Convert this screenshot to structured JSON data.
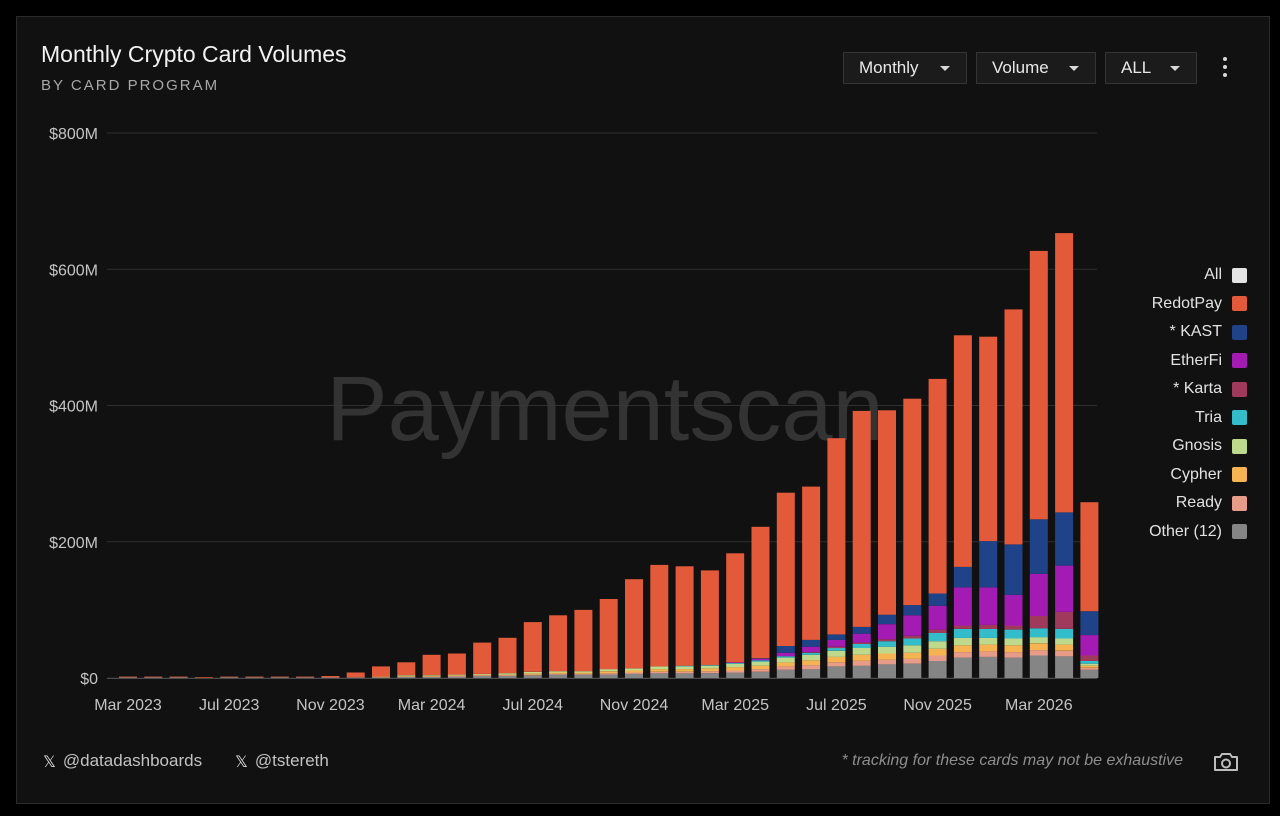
{
  "header": {
    "title": "Monthly Crypto Card Volumes",
    "subtitle": "BY CARD PROGRAM"
  },
  "controls": {
    "period": "Monthly",
    "metric": "Volume",
    "filter": "ALL",
    "menu_icon": "vertical-ellipsis-icon"
  },
  "watermark": "Paymentscan",
  "legend": [
    {
      "label": "All",
      "color": "#e3e3e3"
    },
    {
      "label": "RedotPay",
      "color": "#e25a39"
    },
    {
      "label": "* KAST",
      "color": "#1f4288"
    },
    {
      "label": "EtherFi",
      "color": "#a31bb3"
    },
    {
      "label": "* Karta",
      "color": "#a03a5c"
    },
    {
      "label": "Tria",
      "color": "#33bcc9"
    },
    {
      "label": "Gnosis",
      "color": "#bfd98c"
    },
    {
      "label": "Cypher",
      "color": "#f5b352"
    },
    {
      "label": "Ready",
      "color": "#e79c8a"
    },
    {
      "label": "Other (12)",
      "color": "#858585"
    }
  ],
  "footer": {
    "handles": [
      "@datadashboards",
      "@tstereth"
    ],
    "handle_icon": "x-logo-icon",
    "note": "* tracking for these cards may not be exhaustive",
    "camera_icon": "camera-icon"
  },
  "chart_data": {
    "type": "bar",
    "stacked": true,
    "unit": "$M",
    "ylim": [
      0,
      800
    ],
    "y_ticks": [
      0,
      200,
      400,
      600,
      800
    ],
    "y_tick_labels": [
      "$0",
      "$200M",
      "$400M",
      "$600M",
      "$800M"
    ],
    "x_tick_labels": [
      "Mar 2023",
      "Jul 2023",
      "Nov 2023",
      "Mar 2024",
      "Jul 2024",
      "Nov 2024",
      "Mar 2025",
      "Jul 2025",
      "Nov 2025",
      "Mar 2026"
    ],
    "categories": [
      "Mar 2023",
      "Apr 2023",
      "May 2023",
      "Jun 2023",
      "Jul 2023",
      "Aug 2023",
      "Sep 2023",
      "Oct 2023",
      "Nov 2023",
      "Dec 2023",
      "Jan 2024",
      "Feb 2024",
      "Mar 2024",
      "Apr 2024",
      "May 2024",
      "Jun 2024",
      "Jul 2024",
      "Aug 2024",
      "Sep 2024",
      "Oct 2024",
      "Nov 2024",
      "Dec 2024",
      "Jan 2025",
      "Feb 2025",
      "Mar 2025",
      "Apr 2025",
      "May 2025",
      "Jun 2025",
      "Jul 2025",
      "Aug 2025",
      "Sep 2025",
      "Oct 2025",
      "Nov 2025",
      "Dec 2025",
      "Jan 2026",
      "Feb 2026",
      "Mar 2026",
      "Apr 2026",
      "May 2026"
    ],
    "series": [
      {
        "name": "Other (12)",
        "values": [
          1,
          1,
          1,
          0,
          1,
          1,
          1,
          1,
          1,
          1,
          1,
          2,
          2,
          2,
          3,
          3,
          4,
          5,
          5,
          5,
          6,
          7,
          7,
          7,
          8,
          9,
          12,
          13,
          17,
          18,
          20,
          21,
          25,
          30,
          31,
          30,
          33,
          32,
          12
        ]
      },
      {
        "name": "Ready",
        "values": [
          0,
          0,
          0,
          0,
          0,
          0,
          0,
          0,
          0,
          0,
          0,
          0,
          0,
          1,
          1,
          1,
          1,
          1,
          1,
          2,
          2,
          2,
          2,
          3,
          3,
          4,
          5,
          6,
          6,
          7,
          7,
          7,
          8,
          8,
          8,
          8,
          8,
          8,
          3
        ]
      },
      {
        "name": "Cypher",
        "values": [
          0,
          0,
          0,
          0,
          0,
          0,
          0,
          0,
          0,
          0,
          1,
          1,
          1,
          1,
          1,
          1,
          2,
          2,
          2,
          3,
          3,
          4,
          4,
          4,
          5,
          5,
          6,
          7,
          8,
          9,
          9,
          9,
          10,
          10,
          10,
          10,
          10,
          9,
          3
        ]
      },
      {
        "name": "Gnosis",
        "values": [
          0,
          0,
          0,
          0,
          0,
          0,
          0,
          0,
          0,
          0,
          0,
          1,
          1,
          1,
          1,
          2,
          2,
          2,
          2,
          3,
          3,
          4,
          4,
          4,
          5,
          6,
          7,
          8,
          9,
          10,
          10,
          11,
          11,
          11,
          10,
          10,
          9,
          9,
          3
        ]
      },
      {
        "name": "Tria",
        "values": [
          0,
          0,
          0,
          0,
          0,
          0,
          0,
          0,
          0,
          0,
          0,
          0,
          0,
          0,
          0,
          0,
          0,
          0,
          0,
          0,
          0,
          0,
          1,
          1,
          1,
          2,
          2,
          3,
          4,
          6,
          8,
          10,
          12,
          13,
          13,
          13,
          13,
          14,
          4
        ]
      },
      {
        "name": "* Karta",
        "values": [
          0,
          0,
          0,
          0,
          0,
          0,
          0,
          0,
          0,
          0,
          0,
          0,
          0,
          0,
          0,
          0,
          0,
          0,
          0,
          0,
          0,
          0,
          0,
          0,
          0,
          0,
          0,
          1,
          2,
          2,
          3,
          4,
          5,
          5,
          6,
          6,
          18,
          25,
          8
        ]
      },
      {
        "name": "EtherFi",
        "values": [
          0,
          0,
          0,
          0,
          0,
          0,
          0,
          0,
          0,
          0,
          0,
          0,
          0,
          0,
          0,
          0,
          0,
          0,
          0,
          0,
          0,
          0,
          0,
          0,
          1,
          2,
          5,
          8,
          10,
          13,
          22,
          30,
          35,
          56,
          55,
          45,
          62,
          68,
          30
        ]
      },
      {
        "name": "* KAST",
        "values": [
          0,
          0,
          0,
          0,
          0,
          0,
          0,
          0,
          0,
          0,
          0,
          0,
          0,
          0,
          0,
          0,
          0,
          0,
          0,
          0,
          0,
          0,
          0,
          0,
          0,
          1,
          10,
          10,
          8,
          10,
          14,
          15,
          18,
          30,
          68,
          74,
          80,
          78,
          35
        ]
      },
      {
        "name": "RedotPay",
        "values": [
          1,
          1,
          1,
          1,
          1,
          1,
          1,
          1,
          2,
          7,
          15,
          19,
          30,
          31,
          46,
          52,
          73,
          82,
          90,
          103,
          131,
          149,
          146,
          139,
          160,
          193,
          225,
          225,
          288,
          317,
          300,
          303,
          315,
          340,
          300,
          345,
          394,
          410,
          160
        ]
      }
    ]
  }
}
